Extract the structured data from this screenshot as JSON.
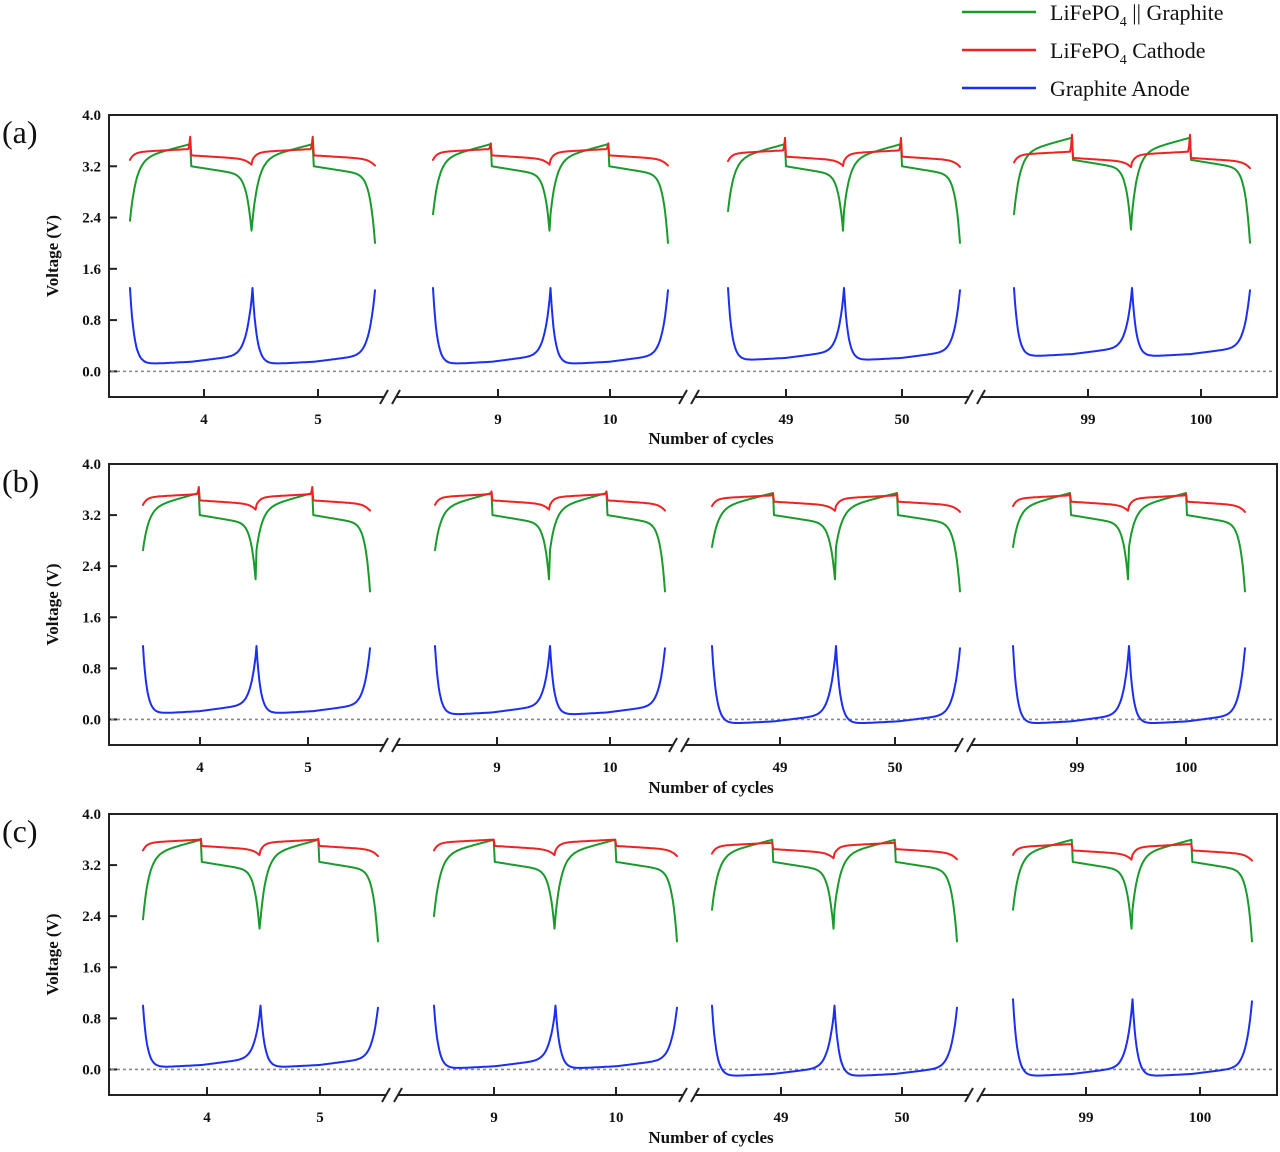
{
  "chart_data": {
    "type": "line",
    "legend": {
      "placement": "top-right",
      "entries": [
        {
          "key": "full",
          "label_parts": [
            "LiFePO",
            "4",
            " || Graphite"
          ],
          "color": "#1a9a2c"
        },
        {
          "key": "cathode",
          "label_parts": [
            "LiFePO",
            "4",
            " Cathode"
          ],
          "color": "#ee2222"
        },
        {
          "key": "anode",
          "label_parts": [
            "Graphite Anode"
          ],
          "color": "#1c2ef0"
        }
      ]
    },
    "panels": [
      {
        "label": "(a)",
        "ylabel": "Voltage (V)",
        "xlabel": "Number of cycles",
        "ylim": [
          -0.4,
          4.0
        ],
        "yticks": [
          "0.0",
          "0.8",
          "1.6",
          "2.4",
          "3.2",
          "4.0"
        ],
        "yticks_values": [
          0.0,
          0.8,
          1.6,
          2.4,
          3.2,
          4.0
        ],
        "zero_line": true,
        "axis_breaks": true,
        "groups": [
          {
            "cycles": [
              "4",
              "5"
            ],
            "full_start": 2.35,
            "full_charge_top": 3.55,
            "full_min": 2.0,
            "cathode_plateau": 3.42,
            "cathode_peak": 3.8,
            "anode_top": 1.3,
            "anode_floor": 0.1
          },
          {
            "cycles": [
              "9",
              "10"
            ],
            "full_start": 2.45,
            "full_charge_top": 3.55,
            "full_min": 2.0,
            "cathode_plateau": 3.42,
            "cathode_peak": 3.62,
            "anode_top": 1.3,
            "anode_floor": 0.1
          },
          {
            "cycles": [
              "49",
              "50"
            ],
            "full_start": 2.5,
            "full_charge_top": 3.55,
            "full_min": 2.0,
            "cathode_plateau": 3.4,
            "cathode_peak": 3.78,
            "anode_top": 1.3,
            "anode_floor": 0.16
          },
          {
            "cycles": [
              "99",
              "100"
            ],
            "full_start": 2.45,
            "full_charge_top": 3.65,
            "full_min": 2.0,
            "cathode_plateau": 3.38,
            "cathode_peak": 3.88,
            "anode_top": 1.3,
            "anode_floor": 0.22
          }
        ]
      },
      {
        "label": "(b)",
        "ylabel": "Voltage (V)",
        "xlabel": "Number of cycles",
        "ylim": [
          -0.4,
          4.0
        ],
        "yticks": [
          "0.0",
          "0.8",
          "1.6",
          "2.4",
          "3.2",
          "4.0"
        ],
        "yticks_values": [
          0.0,
          0.8,
          1.6,
          2.4,
          3.2,
          4.0
        ],
        "zero_line": true,
        "axis_breaks": true,
        "groups": [
          {
            "cycles": [
              "4",
              "5"
            ],
            "full_start": 2.65,
            "full_charge_top": 3.55,
            "full_min": 2.0,
            "cathode_plateau": 3.48,
            "cathode_peak": 3.72,
            "anode_top": 1.15,
            "anode_floor": 0.08
          },
          {
            "cycles": [
              "9",
              "10"
            ],
            "full_start": 2.65,
            "full_charge_top": 3.55,
            "full_min": 2.0,
            "cathode_plateau": 3.48,
            "cathode_peak": 3.6,
            "anode_top": 1.15,
            "anode_floor": 0.06
          },
          {
            "cycles": [
              "49",
              "50"
            ],
            "full_start": 2.7,
            "full_charge_top": 3.55,
            "full_min": 2.0,
            "cathode_plateau": 3.46,
            "cathode_peak": 3.55,
            "anode_top": 1.15,
            "anode_floor": -0.08
          },
          {
            "cycles": [
              "99",
              "100"
            ],
            "full_start": 2.7,
            "full_charge_top": 3.55,
            "full_min": 2.0,
            "cathode_plateau": 3.46,
            "cathode_peak": 3.55,
            "anode_top": 1.15,
            "anode_floor": -0.08
          }
        ]
      },
      {
        "label": "(c)",
        "ylabel": "Voltage (V)",
        "xlabel": "Number of cycles",
        "ylim": [
          -0.4,
          4.0
        ],
        "yticks": [
          "0.0",
          "0.8",
          "1.6",
          "2.4",
          "3.2",
          "4.0"
        ],
        "yticks_values": [
          0.0,
          0.8,
          1.6,
          2.4,
          3.2,
          4.0
        ],
        "zero_line": true,
        "axis_breaks": true,
        "groups": [
          {
            "cycles": [
              "4",
              "5"
            ],
            "full_start": 2.35,
            "full_charge_top": 3.6,
            "full_min": 2.0,
            "cathode_plateau": 3.55,
            "cathode_peak": 3.62,
            "anode_top": 1.0,
            "anode_floor": 0.02
          },
          {
            "cycles": [
              "9",
              "10"
            ],
            "full_start": 2.4,
            "full_charge_top": 3.6,
            "full_min": 2.0,
            "cathode_plateau": 3.55,
            "cathode_peak": 3.6,
            "anode_top": 1.0,
            "anode_floor": 0.0
          },
          {
            "cycles": [
              "49",
              "50"
            ],
            "full_start": 2.5,
            "full_charge_top": 3.6,
            "full_min": 2.0,
            "cathode_plateau": 3.5,
            "cathode_peak": 3.55,
            "anode_top": 1.0,
            "anode_floor": -0.12
          },
          {
            "cycles": [
              "99",
              "100"
            ],
            "full_start": 2.5,
            "full_charge_top": 3.6,
            "full_min": 2.0,
            "cathode_plateau": 3.48,
            "cathode_peak": 3.52,
            "anode_top": 1.1,
            "anode_floor": -0.12
          }
        ]
      }
    ]
  }
}
